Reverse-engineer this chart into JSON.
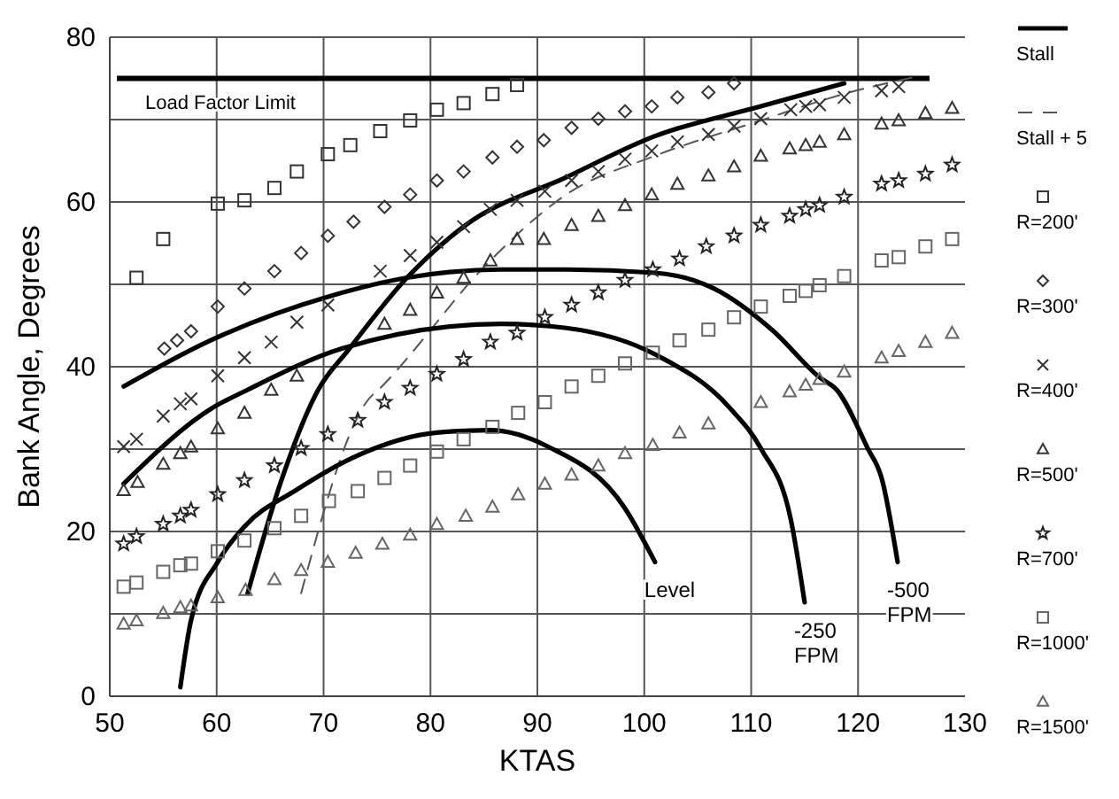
{
  "chart_data": {
    "type": "scatter",
    "xlabel": "KTAS",
    "ylabel": "Bank Angle, Degrees",
    "xlim": [
      50,
      130
    ],
    "xticks": [
      50,
      60,
      70,
      80,
      90,
      100,
      110,
      120,
      130
    ],
    "ylim": [
      0,
      80
    ],
    "yticks": [
      0,
      {
        "value": 10,
        "label": null
      },
      20,
      {
        "value": 30,
        "label": null
      },
      40,
      {
        "value": 50,
        "label": null
      },
      60,
      {
        "value": 70,
        "label": null
      },
      80
    ],
    "grid": true,
    "legend": "right",
    "ref_lines": [
      {
        "axis": "y",
        "value": 75,
        "label": "Load Factor Limit",
        "color": "#000000"
      }
    ],
    "annotations": [
      {
        "text": "Level",
        "x": 101,
        "y": 16.3
      },
      {
        "text": "-250 FPM",
        "x": 115,
        "y": 11.4
      },
      {
        "text": "-500 FPM",
        "x": 123.7,
        "y": 16.3
      }
    ],
    "series": [
      {
        "name": "Stall",
        "type": "line",
        "color": "#000000",
        "line_style": "solid",
        "x": [
          62.9,
          66,
          69.5,
          72.3,
          77.8,
          83.3,
          92.7,
          101,
          110.9,
          118.7
        ],
        "values": [
          12.5,
          26,
          37.2,
          42,
          50.8,
          57.2,
          63,
          68,
          71.6,
          74.4
        ]
      },
      {
        "name": "Stall + 5",
        "type": "line",
        "color": "#555555",
        "line_style": "dashed",
        "x": [
          67.9,
          74,
          75.6,
          85.6,
          92.7,
          101,
          110.9,
          119.2,
          125.8
        ],
        "values": [
          12.5,
          35.7,
          37.8,
          52.9,
          60.9,
          65.6,
          69.9,
          73.3,
          75.3
        ]
      },
      {
        "type": "line",
        "color": "#000000",
        "line_style": "solid",
        "x": [
          56.6,
          57.6,
          60.1,
          62.6,
          67.4,
          72.8,
          80.6,
          85.6,
          91,
          98.2,
          101
        ],
        "values": [
          1.1,
          9.2,
          16.3,
          20.6,
          25,
          29,
          32,
          32.3,
          30.3,
          22.8,
          16.3
        ]
      },
      {
        "type": "line",
        "color": "#000000",
        "line_style": "solid",
        "x": [
          51.3,
          59.6,
          62.9,
          71.7,
          86.6,
          92.7,
          101,
          108,
          110.9,
          113.7,
          115
        ],
        "values": [
          25.8,
          35,
          37.2,
          42.2,
          45.2,
          44.7,
          41.5,
          35,
          30.1,
          21.5,
          11.4
        ]
      },
      {
        "type": "line",
        "color": "#000000",
        "line_style": "solid",
        "x": [
          51.3,
          59.1,
          70.7,
          77.8,
          86.6,
          92.7,
          101,
          106.5,
          112.1,
          116.4,
          118,
          120.9,
          122.2,
          123.7
        ],
        "values": [
          37.6,
          43,
          48.6,
          50.8,
          51.8,
          51.8,
          51.4,
          49.5,
          44.3,
          38.7,
          37.2,
          30.1,
          26.5,
          16.3
        ]
      },
      {
        "name": "R=200'",
        "color": "#333333",
        "marker": "square",
        "x": [
          52.5,
          55,
          60.1,
          62.6,
          65.4,
          67.5,
          70.4,
          72.5,
          75.3,
          78.1,
          80.6,
          83.1,
          85.8,
          88.1
        ],
        "values": [
          50.8,
          55.5,
          59.8,
          60.2,
          61.7,
          63.7,
          65.8,
          66.9,
          68.6,
          69.9,
          71.2,
          72,
          73.1,
          74.2
        ]
      },
      {
        "name": "R=300'",
        "color": "#333333",
        "marker": "diamond",
        "x": [
          55.1,
          56.3,
          57.6,
          60.1,
          62.6,
          65.4,
          67.9,
          70.4,
          72.8,
          75.7,
          78.1,
          80.6,
          83.1,
          85.8,
          88.1,
          90.6,
          93.2,
          95.7,
          98.2,
          100.7,
          103.1,
          106,
          108.4
        ],
        "values": [
          42.2,
          43.2,
          44.3,
          47.3,
          49.5,
          51.6,
          53.8,
          55.9,
          57.6,
          59.4,
          60.9,
          62.6,
          63.7,
          65.4,
          66.7,
          67.5,
          69,
          70.1,
          71,
          71.6,
          72.7,
          73.3,
          74.4
        ]
      },
      {
        "name": "R=400'",
        "color": "#333333",
        "marker": "cross",
        "x": [
          51.3,
          52.5,
          55,
          56.6,
          57.6,
          60.1,
          62.6,
          65.1,
          67.5,
          70.4,
          75.3,
          78.1,
          80.6,
          83.1,
          85.6,
          88.1,
          90.7,
          93.2,
          95.7,
          98.2,
          100.7,
          103.1,
          106,
          108.4,
          110.9,
          113.7,
          115.1,
          116.4,
          118.7,
          122.2,
          123.8
        ],
        "values": [
          30.3,
          31.2,
          34,
          35.5,
          36.1,
          38.9,
          41.1,
          43,
          45.4,
          47.5,
          51.6,
          53.5,
          55.1,
          57,
          59.1,
          60.2,
          61.3,
          62.6,
          63.7,
          65.2,
          66.2,
          67.3,
          68.2,
          69.2,
          70.1,
          71.2,
          71.6,
          71.8,
          72.7,
          73.5,
          74
        ]
      },
      {
        "name": "R=500'",
        "color": "#333333",
        "marker": "triangle",
        "x": [
          51.3,
          52.6,
          55,
          56.6,
          57.6,
          60.1,
          62.6,
          65.1,
          67.5,
          75.7,
          78.1,
          80.6,
          83.1,
          85.6,
          88.1,
          90.6,
          93.2,
          95.7,
          98.2,
          100.7,
          103.1,
          106,
          108.4,
          110.9,
          113.6,
          115.1,
          116.4,
          118.7,
          122.2,
          123.8,
          126.3,
          128.8
        ],
        "values": [
          25,
          26,
          28.2,
          29.5,
          30.3,
          32.5,
          34.4,
          37.2,
          38.9,
          45.2,
          46.9,
          49,
          50.8,
          52.9,
          55.5,
          55.5,
          57.2,
          58.3,
          59.6,
          60.9,
          62.2,
          63.2,
          64.3,
          65.6,
          66.5,
          66.9,
          67.3,
          68.2,
          69.5,
          69.9,
          70.8,
          71.4
        ]
      },
      {
        "name": "R=700'",
        "color": "#222222",
        "marker": "star",
        "x": [
          51.3,
          52.5,
          55,
          56.6,
          57.6,
          60.1,
          62.6,
          65.4,
          67.9,
          70.4,
          73.2,
          75.7,
          78.1,
          80.6,
          83.1,
          85.6,
          88.1,
          90.7,
          93.2,
          95.7,
          98.2,
          100.8,
          103.3,
          105.8,
          108.4,
          110.9,
          113.6,
          115.1,
          116.4,
          118.7,
          122.2,
          123.8,
          126.3,
          128.8
        ],
        "values": [
          18.5,
          19.4,
          20.9,
          21.9,
          22.6,
          24.5,
          26.2,
          28,
          30.1,
          31.8,
          33.5,
          35.7,
          37.4,
          39.1,
          40.9,
          43,
          44.1,
          46,
          47.5,
          49,
          50.5,
          51.8,
          53.1,
          54.6,
          55.9,
          57.2,
          58.3,
          59.1,
          59.6,
          60.6,
          62.2,
          62.6,
          63.4,
          64.5
        ]
      },
      {
        "name": "R=1000'",
        "color": "#666666",
        "marker": "square",
        "x": [
          51.3,
          52.5,
          55,
          56.6,
          57.6,
          60.1,
          62.6,
          65.4,
          67.9,
          70.5,
          73.2,
          75.7,
          78.1,
          80.6,
          83.1,
          85.8,
          88.2,
          90.7,
          93.2,
          95.7,
          98.2,
          100.8,
          103.3,
          106,
          108.4,
          110.9,
          113.6,
          115.1,
          116.4,
          118.7,
          122.2,
          123.8,
          126.3,
          128.8
        ],
        "values": [
          13.3,
          13.8,
          15.1,
          15.9,
          16.1,
          17.6,
          18.9,
          20.4,
          21.9,
          23.7,
          24.9,
          26.5,
          28,
          29.7,
          31.2,
          32.7,
          34.4,
          35.7,
          37.6,
          38.9,
          40.4,
          41.7,
          43.2,
          44.5,
          46,
          47.3,
          48.6,
          49.2,
          49.9,
          51,
          52.9,
          53.3,
          54.6,
          55.5
        ]
      },
      {
        "name": "R=1500'",
        "color": "#666666",
        "marker": "triangle",
        "x": [
          51.3,
          52.5,
          55,
          56.6,
          57.6,
          60.1,
          62.7,
          65.4,
          67.9,
          70.4,
          73,
          75.5,
          78.1,
          80.6,
          83.3,
          85.8,
          88.2,
          90.7,
          93.2,
          95.7,
          98.2,
          100.8,
          103.3,
          106,
          110.9,
          113.6,
          115.1,
          116.4,
          118.7,
          122.2,
          123.8,
          126.3,
          128.8
        ],
        "values": [
          8.8,
          9.2,
          10.1,
          10.8,
          11,
          12,
          12.9,
          14.2,
          15.3,
          16.3,
          17.4,
          18.5,
          19.6,
          20.9,
          21.9,
          23,
          24.5,
          25.8,
          26.9,
          28,
          29.5,
          30.5,
          32,
          33.1,
          35.7,
          37,
          37.8,
          38.5,
          39.4,
          41.1,
          41.9,
          43,
          44.1
        ]
      }
    ]
  }
}
